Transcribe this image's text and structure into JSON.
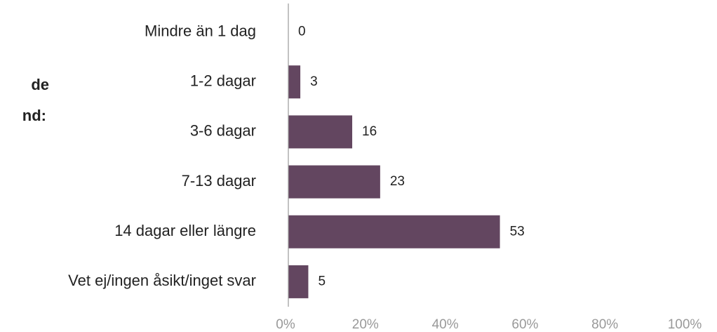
{
  "chart_data": {
    "type": "bar",
    "orientation": "horizontal",
    "annotations": [
      "de",
      "nd:"
    ],
    "categories": [
      "Mindre än 1 dag",
      "1-2 dagar",
      "3-6 dagar",
      "7-13 dagar",
      "14 dagar eller längre",
      "Vet ej/ingen åsikt/inget svar"
    ],
    "values": [
      0,
      3,
      16,
      23,
      53,
      5
    ],
    "color": "#634660",
    "xlim": [
      0,
      100
    ],
    "xticks": [
      {
        "value": 0,
        "label": "0%"
      },
      {
        "value": 20,
        "label": "20%"
      },
      {
        "value": 40,
        "label": "40%"
      },
      {
        "value": 60,
        "label": "60%"
      },
      {
        "value": 80,
        "label": "80%"
      },
      {
        "value": 100,
        "label": "100%"
      }
    ],
    "grid": false
  }
}
